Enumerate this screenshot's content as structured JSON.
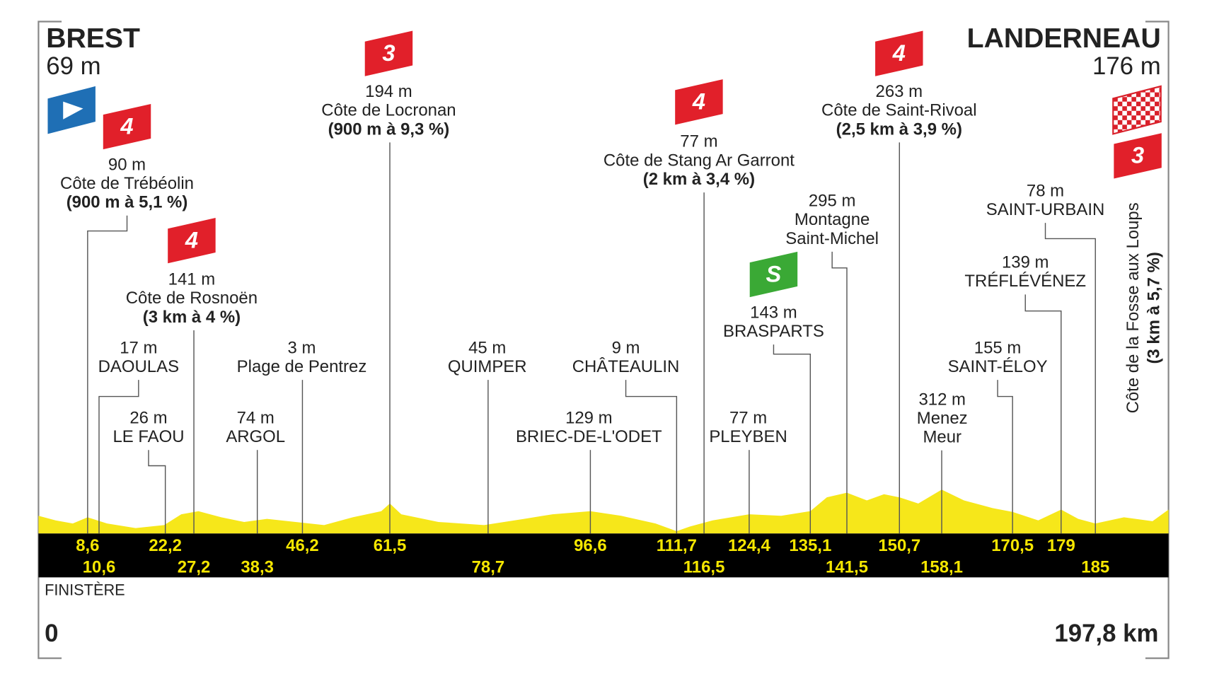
{
  "start": {
    "name": "BREST",
    "altitude": "69 m",
    "km": {
      "value": 0,
      "label": "0"
    }
  },
  "finish": {
    "name": "LANDERNEAU",
    "altitude": "176 m",
    "km": {
      "value": 197.8,
      "label": "197,8 km"
    },
    "climb": {
      "name": "Côte de la Fosse aux Loups",
      "detail": "(3 km à 5,7 %)",
      "category": "3"
    }
  },
  "region": "FINISTÈRE",
  "points": [
    {
      "altitude": "90 m",
      "name": [
        "Côte de Trébéolin"
      ],
      "detail": "(900 m à 5,1 %)",
      "category": "4",
      "km": {
        "value": 8.6,
        "label": "8,6"
      }
    },
    {
      "altitude": "17 m",
      "name": [
        "DAOULAS"
      ],
      "km": {
        "value": 10.6,
        "label": "10,6"
      }
    },
    {
      "altitude": "26 m",
      "name": [
        "LE FAOU"
      ],
      "km": {
        "value": 22.2,
        "label": "22,2"
      }
    },
    {
      "altitude": "141 m",
      "name": [
        "Côte de Rosnoën"
      ],
      "detail": "(3 km à 4 %)",
      "category": "4",
      "km": {
        "value": 27.2,
        "label": "27,2"
      }
    },
    {
      "altitude": "74 m",
      "name": [
        "ARGOL"
      ],
      "km": {
        "value": 38.3,
        "label": "38,3"
      }
    },
    {
      "altitude": "3 m",
      "name": [
        "Plage de Pentrez"
      ],
      "km": {
        "value": 46.2,
        "label": "46,2"
      }
    },
    {
      "altitude": "194 m",
      "name": [
        "Côte de Locronan"
      ],
      "detail": "(900 m à 9,3 %)",
      "category": "3",
      "km": {
        "value": 61.5,
        "label": "61,5"
      }
    },
    {
      "altitude": "45 m",
      "name": [
        "QUIMPER"
      ],
      "km": {
        "value": 78.7,
        "label": "78,7"
      }
    },
    {
      "altitude": "129 m",
      "name": [
        "BRIEC-DE-L'ODET"
      ],
      "km": {
        "value": 96.6,
        "label": "96,6"
      }
    },
    {
      "altitude": "9 m",
      "name": [
        "CHÂTEAULIN"
      ],
      "km": {
        "value": 111.7,
        "label": "111,7"
      }
    },
    {
      "altitude": "77 m",
      "name": [
        "Côte de Stang Ar Garront"
      ],
      "detail": "(2 km à 3,4 %)",
      "category": "4",
      "km": {
        "value": 116.5,
        "label": "116,5"
      }
    },
    {
      "altitude": "77 m",
      "name": [
        "PLEYBEN"
      ],
      "km": {
        "value": 124.4,
        "label": "124,4"
      }
    },
    {
      "altitude": "143 m",
      "name": [
        "BRASPARTS"
      ],
      "category": "S",
      "km": {
        "value": 135.1,
        "label": "135,1"
      }
    },
    {
      "altitude": "295 m",
      "name": [
        "Montagne",
        "Saint-Michel"
      ],
      "km": {
        "value": 141.5,
        "label": "141,5"
      }
    },
    {
      "altitude": "263 m",
      "name": [
        "Côte de Saint-Rivoal"
      ],
      "detail": "(2,5 km à 3,9 %)",
      "category": "4",
      "km": {
        "value": 150.7,
        "label": "150,7"
      }
    },
    {
      "altitude": "312 m",
      "name": [
        "Menez",
        "Meur"
      ],
      "km": {
        "value": 158.1,
        "label": "158,1"
      }
    },
    {
      "altitude": "155 m",
      "name": [
        "SAINT-ÉLOY"
      ],
      "km": {
        "value": 170.5,
        "label": "170,5"
      }
    },
    {
      "altitude": "139 m",
      "name": [
        "TRÉFLÉVÉNEZ"
      ],
      "km": {
        "value": 179,
        "label": "179"
      }
    },
    {
      "altitude": "78 m",
      "name": [
        "SAINT-URBAIN"
      ],
      "km": {
        "value": 185,
        "label": "185"
      }
    }
  ]
}
